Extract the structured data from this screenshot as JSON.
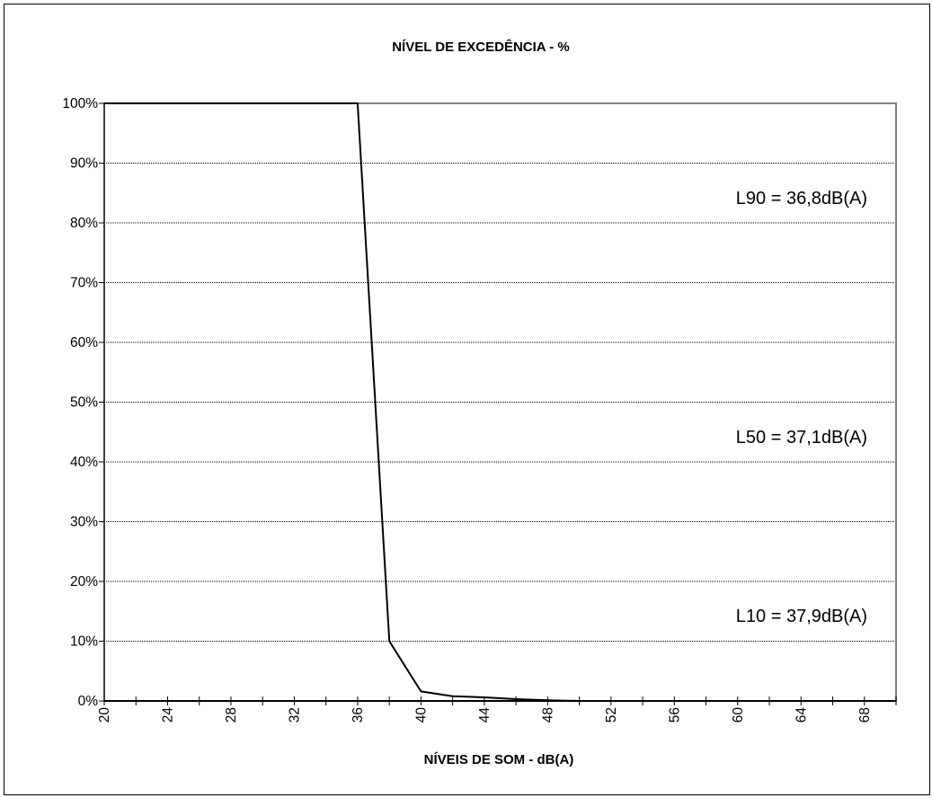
{
  "chart_data": {
    "type": "line",
    "title": "NÍVEL DE EXCEDÊNCIA - %",
    "xlabel": "NÍVEIS DE SOM - dB(A)",
    "ylabel": "",
    "xlim": [
      20,
      70
    ],
    "ylim": [
      0,
      100
    ],
    "x_ticks": [
      "20",
      "24",
      "28",
      "32",
      "36",
      "40",
      "44",
      "48",
      "52",
      "56",
      "60",
      "64",
      "68"
    ],
    "y_ticks": [
      "0%",
      "10%",
      "20%",
      "30%",
      "40%",
      "50%",
      "60%",
      "70%",
      "80%",
      "90%",
      "100%"
    ],
    "grid": "horizontal",
    "series": [
      {
        "x": [
          20,
          36,
          38,
          40,
          42,
          44,
          46,
          48,
          50,
          52,
          54,
          56,
          58,
          60,
          62,
          64,
          66,
          68,
          70
        ],
        "values": [
          100,
          100,
          10,
          1.6,
          0.8,
          0.6,
          0.3,
          0.1,
          0,
          0,
          0,
          0,
          0,
          0,
          0,
          0,
          0,
          0,
          0
        ],
        "color": "#000000"
      }
    ],
    "annotations": [
      "L90 =  36,8dB(A)",
      "L50 =  37,1dB(A)",
      "L10 =  37,9dB(A)"
    ]
  }
}
